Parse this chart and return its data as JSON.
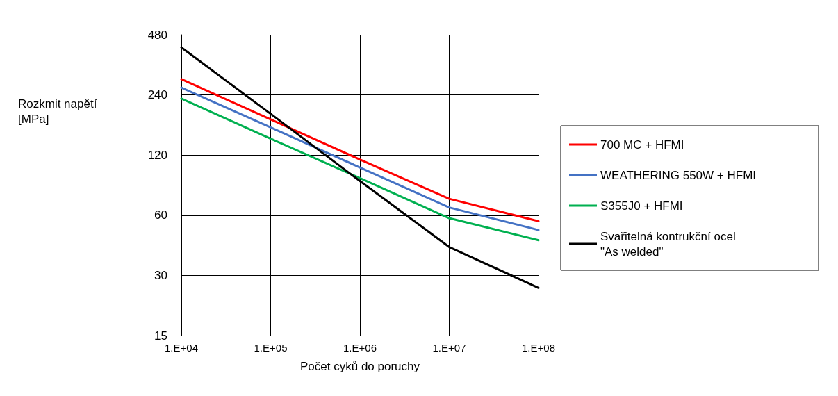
{
  "chart_data": {
    "type": "line",
    "xlabel": "Počet cyků do poruchy",
    "ylabel": "Rozkmit napětí [MPa]",
    "log": "y",
    "grid": true,
    "legend": "right",
    "marker": "none",
    "line_style": "solid",
    "categories": [
      "1.E+04",
      "1.E+05",
      "1.E+06",
      "1.E+07",
      "1.E+08"
    ],
    "ylim": [
      15,
      480
    ],
    "yticks": [
      15,
      30,
      60,
      120,
      240,
      480
    ],
    "series": [
      {
        "name": "700 MC + HFMI",
        "color": "#ff0000",
        "values": [
          288,
          181,
          114,
          72.5,
          56
        ]
      },
      {
        "name": "WEATHERING 550W + HFMI",
        "color": "#4472c4",
        "values": [
          261,
          165,
          104,
          65.6,
          50.6
        ]
      },
      {
        "name": "S355J0 + HFMI",
        "color": "#00b050",
        "values": [
          230,
          145,
          92,
          58,
          45
        ]
      },
      {
        "name": "Svařitelná kontrukční ocel  \"As welded\"",
        "color": "#000000",
        "values": [
          415,
          193,
          89,
          41.6,
          26
        ]
      }
    ]
  }
}
